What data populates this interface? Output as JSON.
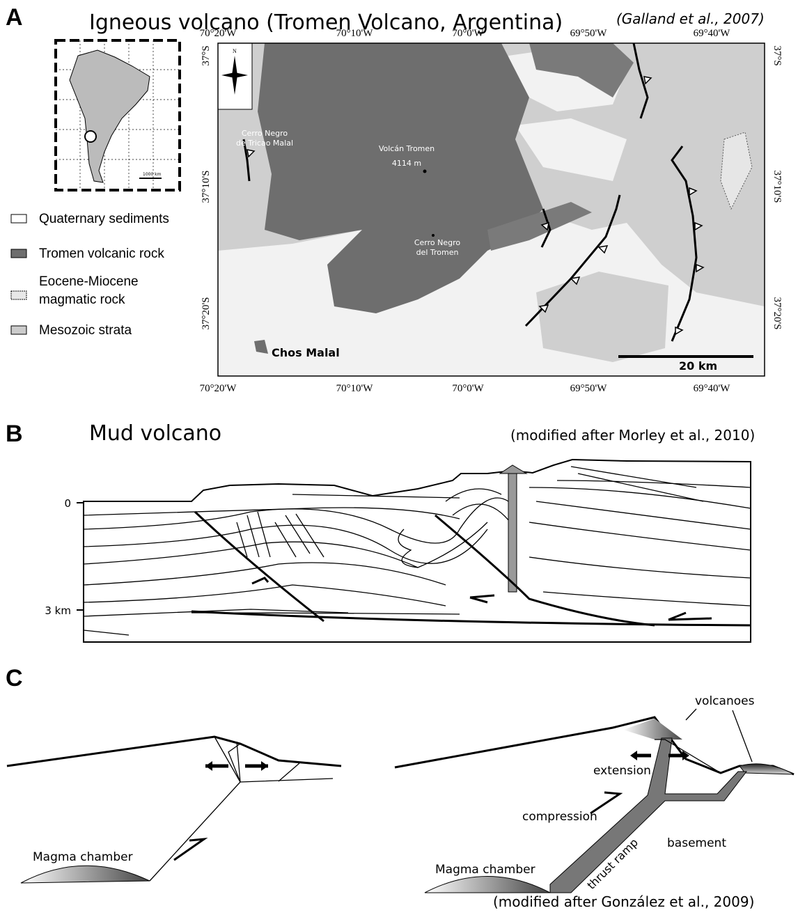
{
  "panel_a": {
    "label": "A",
    "title": "Igneous volcano (Tromen Volcano, Argentina)",
    "citation": "(Galland et al., 2007)",
    "longitudes": [
      "70°20'W",
      "70°10'W",
      "70°0'W",
      "69°50'W",
      "69°40'W"
    ],
    "latitudes": [
      "37°S",
      "37°10'S",
      "37°20'S"
    ],
    "map_labels": {
      "cerro_tricao": [
        "Cerro Negro",
        "de Tricao Malal"
      ],
      "volcan": "Volcán Tromen",
      "elevation": "4114 m",
      "cerro_tromen": [
        "Cerro Negro",
        "del Tromen"
      ],
      "town": "Chos Malal",
      "scale": "20 km",
      "north": "N",
      "inset_scale": "1000 km"
    },
    "legend": [
      {
        "lines": [
          "Quaternary sediments"
        ]
      },
      {
        "lines": [
          "Tromen volcanic rock"
        ]
      },
      {
        "lines": [
          "Eocene-Miocene",
          "magmatic rock"
        ]
      },
      {
        "lines": [
          "Mesozoic strata"
        ]
      }
    ]
  },
  "panel_b": {
    "label": "B",
    "title": "Mud volcano",
    "citation": "(modified after Morley et al., 2010)",
    "depth_labels": [
      "0",
      "3 km"
    ]
  },
  "panel_c": {
    "label": "C",
    "citation": "(modified after González et al., 2009)",
    "left_labels": {
      "chamber": "Magma chamber"
    },
    "right_labels": {
      "chamber": "Magma chamber",
      "volcanoes": "volcanoes",
      "extension": "extension",
      "compression": "compression",
      "thrust_ramp": "thrust ramp",
      "basement": "basement"
    }
  }
}
